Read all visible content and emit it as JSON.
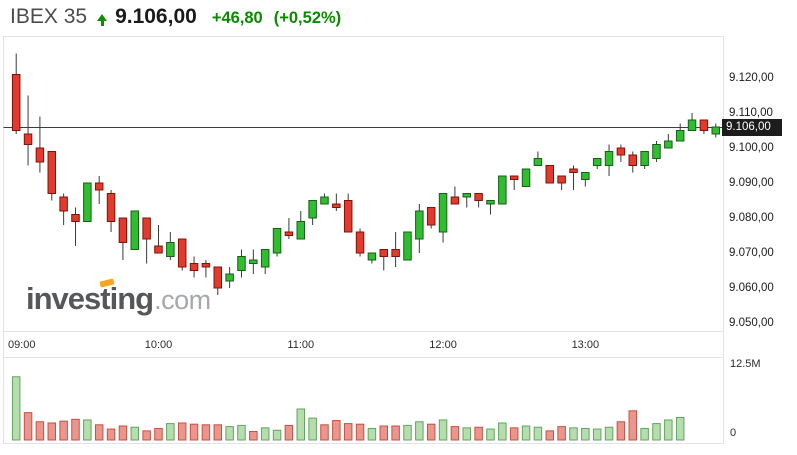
{
  "header": {
    "symbol": "IBEX 35",
    "trend": "up",
    "last": "9.106,00",
    "change": "+46,80",
    "change_pct": "(+0,52%)"
  },
  "watermark": {
    "brand_left": "inves",
    "brand_t": "t",
    "brand_right": "ing",
    "tld": ".com"
  },
  "axes": {
    "price_ticks": [
      {
        "label": "9.120,00",
        "value": 9120
      },
      {
        "label": "9.110,00",
        "value": 9110
      },
      {
        "label": "9.100,00",
        "value": 9100
      },
      {
        "label": "9.090,00",
        "value": 9090
      },
      {
        "label": "9.080,00",
        "value": 9080
      },
      {
        "label": "9.070,00",
        "value": 9070
      },
      {
        "label": "9.060,00",
        "value": 9060
      },
      {
        "label": "9.050,00",
        "value": 9050
      }
    ],
    "time_ticks": [
      {
        "label": "09:00",
        "index": 0
      },
      {
        "label": "10:00",
        "index": 12
      },
      {
        "label": "11:00",
        "index": 24
      },
      {
        "label": "12:00",
        "index": 36
      },
      {
        "label": "13:00",
        "index": 48
      }
    ],
    "volume_max_label": "12.5M",
    "volume_zero_label": "0",
    "volume_max_value": 12.5
  },
  "last_price_tag": {
    "label": "9.106,00",
    "value": 9106
  },
  "chart_data": {
    "type": "candlestick",
    "symbol": "IBEX 35",
    "interval_minutes": 5,
    "session_start": "09:00",
    "session_end": "13:55",
    "ylim": [
      9045,
      9130
    ],
    "grid": false,
    "legend_position": "none",
    "price_line": 9106,
    "ohlc": [
      [
        9121,
        9127,
        9104,
        9105
      ],
      [
        9104,
        9115,
        9095,
        9101
      ],
      [
        9100,
        9109,
        9093,
        9096
      ],
      [
        9099,
        9099,
        9085,
        9087
      ],
      [
        9086,
        9087,
        9078,
        9082
      ],
      [
        9081,
        9083,
        9072,
        9079
      ],
      [
        9079,
        9090,
        9079,
        9090
      ],
      [
        9090,
        9092,
        9084,
        9088
      ],
      [
        9087,
        9088,
        9076,
        9079
      ],
      [
        9080,
        9080,
        9068,
        9073
      ],
      [
        9071,
        9082,
        9071,
        9082
      ],
      [
        9080,
        9080,
        9067,
        9074
      ],
      [
        9072,
        9078,
        9070,
        9070
      ],
      [
        9069,
        9076,
        9068,
        9073
      ],
      [
        9074,
        9074,
        9065,
        9066
      ],
      [
        9067,
        9069,
        9063,
        9065
      ],
      [
        9067,
        9068,
        9063,
        9066
      ],
      [
        9066,
        9066,
        9058,
        9060
      ],
      [
        9062,
        9066,
        9060,
        9064
      ],
      [
        9065,
        9071,
        9063,
        9069
      ],
      [
        9067,
        9071,
        9064,
        9068
      ],
      [
        9066,
        9071,
        9064,
        9071
      ],
      [
        9070,
        9077,
        9069,
        9077
      ],
      [
        9076,
        9080,
        9074,
        9075
      ],
      [
        9074,
        9082,
        9074,
        9079
      ],
      [
        9080,
        9085,
        9078,
        9085
      ],
      [
        9084,
        9087,
        9084,
        9086
      ],
      [
        9084,
        9087,
        9082,
        9083
      ],
      [
        9085,
        9087,
        9076,
        9076
      ],
      [
        9076,
        9077,
        9069,
        9070
      ],
      [
        9068,
        9070,
        9067,
        9070
      ],
      [
        9071,
        9071,
        9065,
        9069
      ],
      [
        9071,
        9076,
        9066,
        9069
      ],
      [
        9068,
        9076,
        9068,
        9076
      ],
      [
        9074,
        9084,
        9070,
        9082
      ],
      [
        9083,
        9083,
        9077,
        9078
      ],
      [
        9076,
        9087,
        9073,
        9087
      ],
      [
        9086,
        9089,
        9084,
        9084
      ],
      [
        9086,
        9087,
        9083,
        9087
      ],
      [
        9087,
        9087,
        9083,
        9085
      ],
      [
        9084,
        9085,
        9081,
        9085
      ],
      [
        9084,
        9092,
        9084,
        9092
      ],
      [
        9092,
        9092,
        9088,
        9091
      ],
      [
        9089,
        9094,
        9089,
        9094
      ],
      [
        9095,
        9099,
        9095,
        9097
      ],
      [
        9095,
        9095,
        9090,
        9090
      ],
      [
        9092,
        9092,
        9088,
        9090
      ],
      [
        9094,
        9095,
        9088,
        9093
      ],
      [
        9091,
        9093,
        9089,
        9093
      ],
      [
        9095,
        9097,
        9094,
        9097
      ],
      [
        9095,
        9101,
        9092,
        9099
      ],
      [
        9100,
        9101,
        9096,
        9098
      ],
      [
        9098,
        9099,
        9093,
        9095
      ],
      [
        9095,
        9099,
        9094,
        9099
      ],
      [
        9097,
        9102,
        9096,
        9101
      ],
      [
        9100,
        9104,
        9100,
        9102
      ],
      [
        9102,
        9107,
        9102,
        9105
      ],
      [
        9105,
        9110,
        9105,
        9108
      ],
      [
        9108,
        9108,
        9104,
        9105
      ],
      [
        9104,
        9107,
        9103,
        9106
      ]
    ],
    "volumes_millions": [
      10.4,
      4.5,
      3.0,
      2.8,
      3.1,
      3.4,
      3.3,
      2.5,
      1.8,
      2.3,
      2.1,
      1.5,
      1.9,
      2.7,
      2.8,
      2.6,
      2.5,
      2.5,
      2.2,
      2.4,
      1.4,
      2.0,
      1.6,
      2.4,
      5.1,
      3.6,
      2.5,
      3.2,
      2.7,
      2.6,
      1.9,
      2.3,
      2.3,
      2.4,
      3.0,
      2.6,
      3.3,
      2.2,
      2.0,
      2.1,
      1.8,
      2.8,
      2.0,
      2.3,
      2.1,
      1.5,
      2.2,
      2.0,
      1.9,
      1.8,
      2.1,
      3.0,
      4.8,
      1.9,
      2.7,
      3.3,
      3.7,
      0,
      0,
      0
    ],
    "volume_dirs": [
      "u",
      "d",
      "d",
      "d",
      "d",
      "d",
      "u",
      "d",
      "d",
      "d",
      "u",
      "d",
      "d",
      "u",
      "d",
      "d",
      "d",
      "d",
      "u",
      "u",
      "d",
      "u",
      "u",
      "d",
      "u",
      "u",
      "d",
      "d",
      "d",
      "d",
      "u",
      "d",
      "d",
      "u",
      "u",
      "d",
      "u",
      "d",
      "u",
      "d",
      "u",
      "u",
      "d",
      "u",
      "u",
      "d",
      "d",
      "u",
      "u",
      "u",
      "u",
      "d",
      "d",
      "u",
      "u",
      "u",
      "u",
      "u",
      "u",
      "u"
    ],
    "colors": {
      "up_fill": "#2fbe2f",
      "up_stroke": "#1a5c1a",
      "down_fill": "#e23b2e",
      "down_stroke": "#801309",
      "wick": "#3a3a3a",
      "vol_up_fill": "#b5ddae",
      "vol_up_stroke": "#64a45f",
      "vol_down_fill": "#ea968d",
      "vol_down_stroke": "#c75044",
      "price_line": "#3d3d3d",
      "tag_bg": "#1c1c1c",
      "tag_text": "#ffffff",
      "header_green": "#0b8a00",
      "watermark_accent": "#f7a51f",
      "panel_border": "#e3e3e3"
    }
  }
}
